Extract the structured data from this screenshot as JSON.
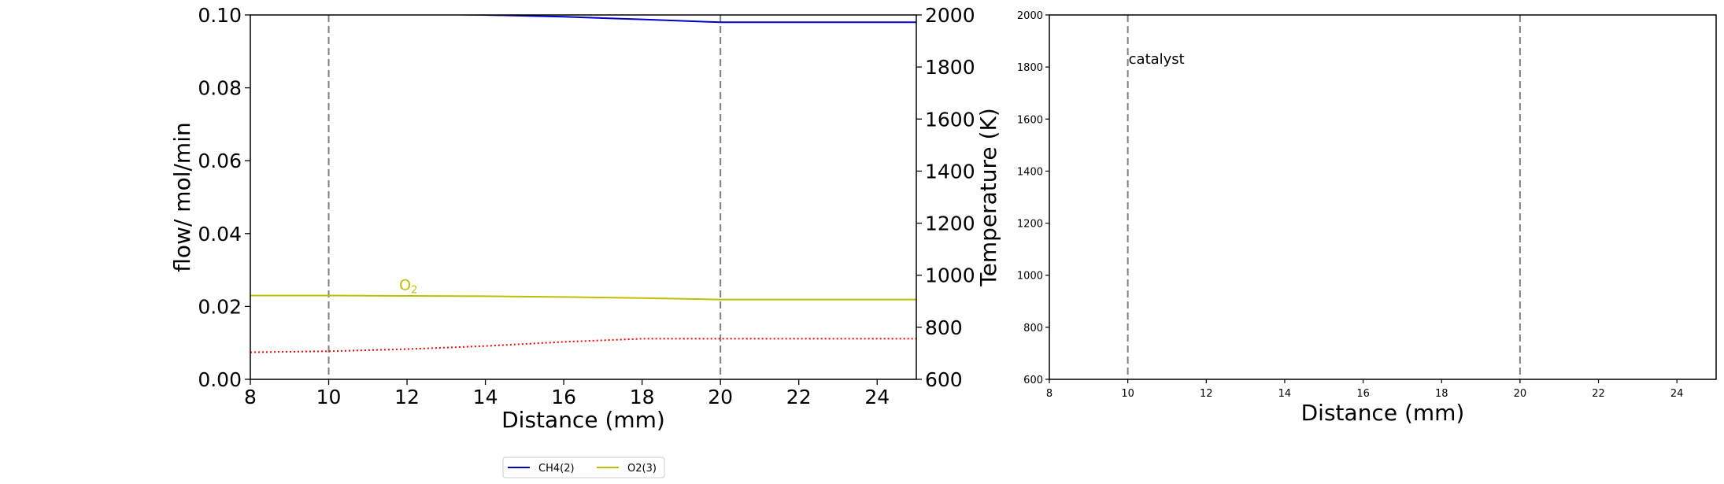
{
  "chart_data": [
    {
      "type": "line",
      "title": "",
      "xlabel": "Distance (mm)",
      "ylabel": "flow/ mol/min",
      "y2label": "Temperature (K)",
      "xlim": [
        8,
        25
      ],
      "ylim": [
        0,
        0.1
      ],
      "y2lim": [
        600,
        2000
      ],
      "xticks": [
        "8",
        "10",
        "12",
        "14",
        "16",
        "18",
        "20",
        "22",
        "24"
      ],
      "yticks": [
        "0.00",
        "0.02",
        "0.04",
        "0.06",
        "0.08",
        "0.10"
      ],
      "y2ticks": [
        "600",
        "800",
        "1000",
        "1200",
        "1400",
        "1600",
        "1800",
        "2000"
      ],
      "vlines": [
        10,
        20
      ],
      "grid": false,
      "legend_position": "below",
      "series": [
        {
          "name": "CH4(2)",
          "color": "#0000cc",
          "axis": "left",
          "x": [
            8,
            10,
            12,
            14,
            16,
            18,
            20,
            22,
            25
          ],
          "values": [
            0.1005,
            0.1005,
            0.1003,
            0.1,
            0.0995,
            0.0988,
            0.098,
            0.098,
            0.098
          ]
        },
        {
          "name": "O2(3)",
          "color": "#bfbf00",
          "axis": "left",
          "label": "O2",
          "label_x": 11.8,
          "label_y": 0.0245,
          "x": [
            8,
            10,
            12,
            14,
            16,
            18,
            20,
            22,
            25
          ],
          "values": [
            0.023,
            0.023,
            0.0229,
            0.0228,
            0.0226,
            0.0223,
            0.0219,
            0.0219,
            0.0219
          ]
        },
        {
          "color": "#ff0000",
          "axis": "right",
          "style": "dotted",
          "x": [
            8,
            10,
            12,
            14,
            16,
            18,
            20,
            22,
            25
          ],
          "values": [
            704,
            708,
            716,
            728,
            744,
            756,
            756,
            756,
            756
          ]
        }
      ]
    },
    {
      "type": "line",
      "title": "",
      "xlabel": "Distance (mm)",
      "ylabel": "",
      "xlim": [
        8,
        25
      ],
      "ylim": [
        600,
        2000
      ],
      "xticks": [
        "8",
        "10",
        "12",
        "14",
        "16",
        "18",
        "20",
        "22",
        "24"
      ],
      "yticks": [
        "600",
        "800",
        "1000",
        "1200",
        "1400",
        "1600",
        "1800",
        "2000"
      ],
      "vlines": [
        10,
        20
      ],
      "annotations": [
        {
          "text": "catalyst",
          "x": 10,
          "y": 1830
        }
      ],
      "grid": false,
      "series": []
    }
  ]
}
